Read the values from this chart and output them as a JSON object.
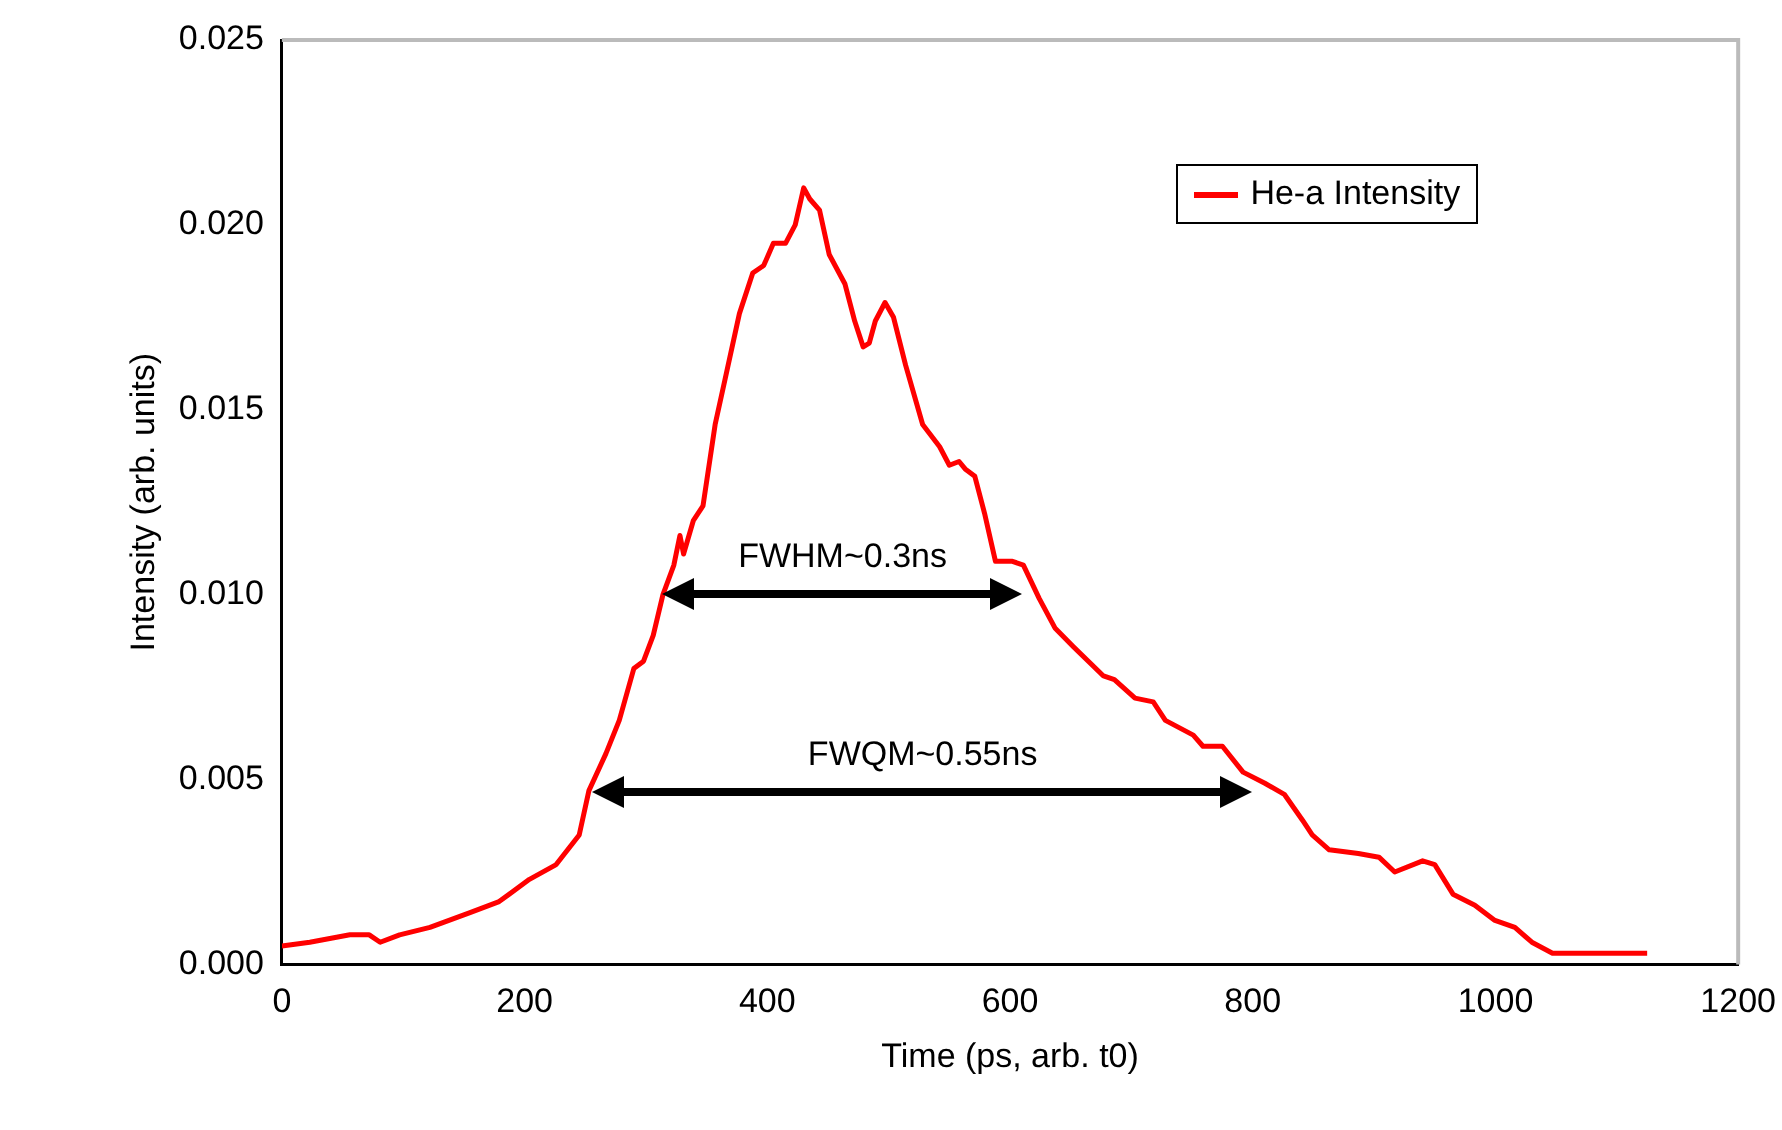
{
  "chart_data": {
    "type": "line",
    "xlabel": "Time (ps, arb. t0)",
    "ylabel": "Intensity (arb. units)",
    "xlim": [
      0,
      1200
    ],
    "xticks": [
      0,
      200,
      400,
      600,
      800,
      1000,
      1200
    ],
    "ylim": [
      0,
      0.025
    ],
    "yticks": [
      {
        "value": 0,
        "label": "0.000"
      },
      {
        "value": 0.005,
        "label": "0.005"
      },
      {
        "value": 0.01,
        "label": "0.010"
      },
      {
        "value": 0.015,
        "label": "0.015"
      },
      {
        "value": 0.02,
        "label": "0.020"
      },
      {
        "value": 0.025,
        "label": "0.025"
      }
    ],
    "grid": false,
    "legend": "top right",
    "marker": "none",
    "line_style": "solid",
    "annotations": [
      "FWHM~0.3ns",
      "FWQM~0.55ns"
    ],
    "series": [
      {
        "name": "He-a Intensity",
        "color": "#ff0000",
        "x": [
          0,
          23,
          56,
          72,
          81,
          97,
          122,
          155,
          179,
          204,
          226,
          245,
          253,
          267,
          278,
          290,
          298,
          306,
          314,
          323,
          328,
          331,
          339,
          347,
          357,
          365,
          377,
          388,
          397,
          405,
          415,
          423,
          430,
          435,
          443,
          451,
          464,
          472,
          479,
          484,
          489,
          497,
          504,
          514,
          528,
          542,
          550,
          558,
          563,
          571,
          579,
          588,
          602,
          611,
          624,
          637,
          652,
          677,
          686,
          703,
          718,
          728,
          751,
          759,
          775,
          792,
          810,
          826,
          841,
          849,
          863,
          887,
          904,
          917,
          940,
          950,
          965,
          983,
          999,
          1016,
          1030,
          1047,
          1125
        ],
        "values": [
          0.0005,
          0.0006,
          0.0008,
          0.0008,
          0.0006,
          0.0008,
          0.001,
          0.0014,
          0.0017,
          0.0023,
          0.0027,
          0.0035,
          0.0047,
          0.0057,
          0.0066,
          0.008,
          0.0082,
          0.0089,
          0.01,
          0.0108,
          0.0116,
          0.0111,
          0.012,
          0.0124,
          0.0146,
          0.0158,
          0.0176,
          0.0187,
          0.0189,
          0.0195,
          0.0195,
          0.02,
          0.021,
          0.0207,
          0.0204,
          0.0192,
          0.0184,
          0.0174,
          0.0167,
          0.0168,
          0.0174,
          0.0179,
          0.0175,
          0.0162,
          0.0146,
          0.014,
          0.0135,
          0.0136,
          0.0134,
          0.0132,
          0.0122,
          0.0109,
          0.0109,
          0.0108,
          0.0099,
          0.0091,
          0.0086,
          0.0078,
          0.0077,
          0.0072,
          0.0071,
          0.0066,
          0.0062,
          0.0059,
          0.0059,
          0.0052,
          0.0049,
          0.0046,
          0.0039,
          0.0035,
          0.0031,
          0.003,
          0.0029,
          0.0025,
          0.0028,
          0.0027,
          0.0019,
          0.0016,
          0.0012,
          0.001,
          0.0006,
          0.0003,
          0.0003
        ]
      }
    ]
  }
}
